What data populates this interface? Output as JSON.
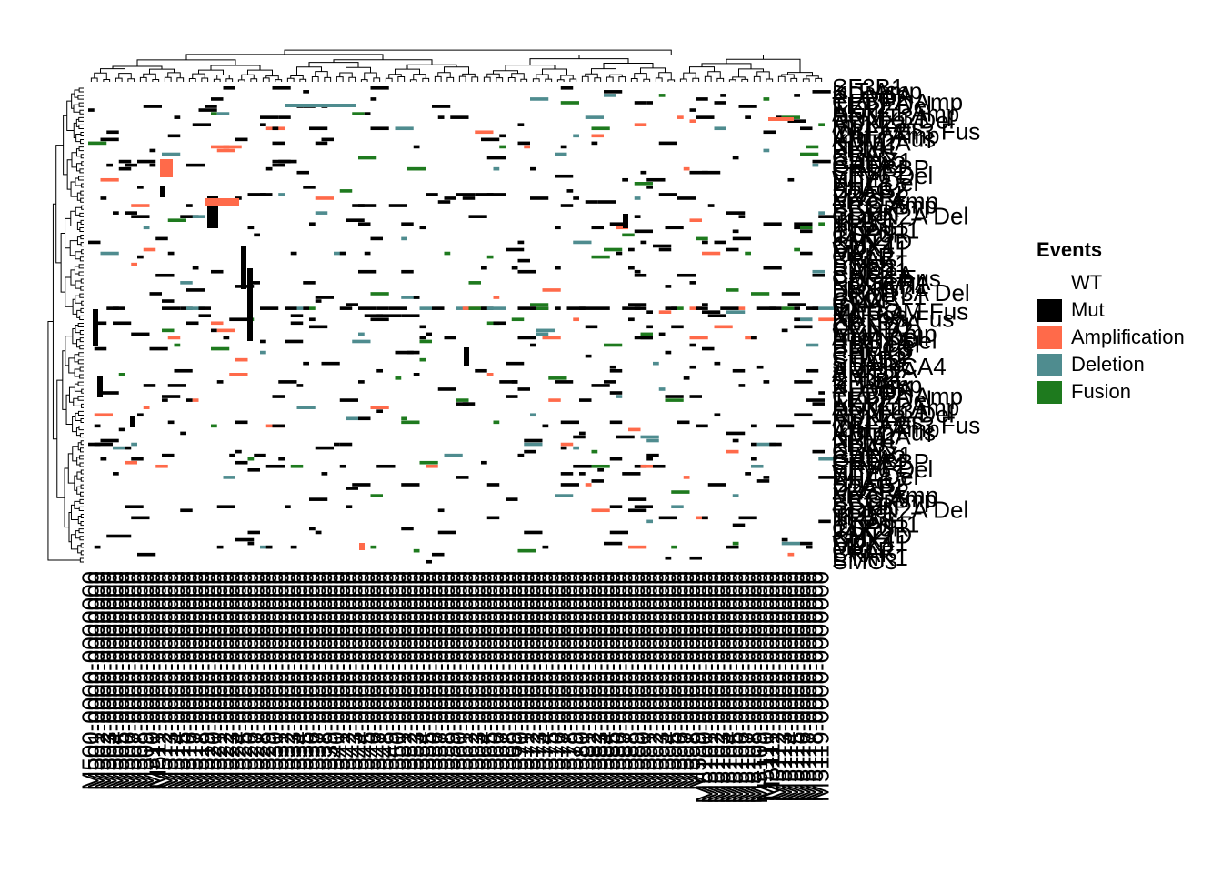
{
  "chart_data": {
    "type": "heatmap",
    "title": "",
    "xlabel": "",
    "ylabel": "",
    "n_rows": 130,
    "n_cols": 120,
    "legend": {
      "title": "Events",
      "placement": "right",
      "items": [
        {
          "label": "WT",
          "color": "#FFFFFF"
        },
        {
          "label": "Mut",
          "color": "#000000"
        },
        {
          "label": "Amplification",
          "color": "#FF6A4A"
        },
        {
          "label": "Deletion",
          "color": "#4F8C8F"
        },
        {
          "label": "Fusion",
          "color": "#1E7A1E"
        }
      ]
    },
    "legible_row_labels": [
      "SF3B1",
      "KIT Amp",
      "KDM6A",
      "PLCG2",
      "CEBPA Amp",
      "TET2 Del",
      "EZH2",
      "ASXL1 Amp",
      "DNMT3A",
      "RUNX1 Del",
      "ASXL2",
      "MLL Fus",
      "CBFA2T3 Fus",
      "IDH2 Amp",
      "ABL1 Fus",
      "KMT2A",
      "NPM1",
      "FLT3",
      "KRAS",
      "CBL",
      "RUNX1",
      "GATA2",
      "CREBBP",
      "SRSF2",
      "ETV6 Del",
      "WT1",
      "NF1 Del",
      "PHF6",
      "STAG2",
      "U2AF1",
      "ZRSR2",
      "MYC Amp",
      "ERG Amp",
      "BCOR",
      "SETBP1",
      "CDKN2A Del",
      "IKZF1",
      "TP53",
      "NRAS",
      "PTPN11",
      "CSF3R",
      "JAK2",
      "KMT2D",
      "CUX1",
      "DDX41",
      "MPL",
      "CALR",
      "BRAF",
      "ETNK1",
      "SMC3",
      "RAD21",
      "SMC1A",
      "CBFB Fus",
      "PDGFRA",
      "NOTCH1",
      "FBXW7",
      "DNMT3A Del",
      "BCORL1",
      "CTCF",
      "GNAS",
      "IDH1",
      "MECOM Fus",
      "KAT6A",
      "NUP98 Fus",
      "ZBTB7A",
      "CCND1",
      "CCND2",
      "MYB Amp",
      "ATM Del",
      "PTEN Del",
      "RB1 Del",
      "BRCC3",
      "PPM1D",
      "CHEK2",
      "SH2B3",
      "STAT3",
      "SMARCA4",
      "ARID1A",
      "ARID2",
      "KMT2C"
    ],
    "col_label_font": "monospace-like sample ids, overlapping",
    "events": [
      {
        "gene": "row 6",
        "col": 52,
        "type": "Mut"
      }
    ]
  }
}
